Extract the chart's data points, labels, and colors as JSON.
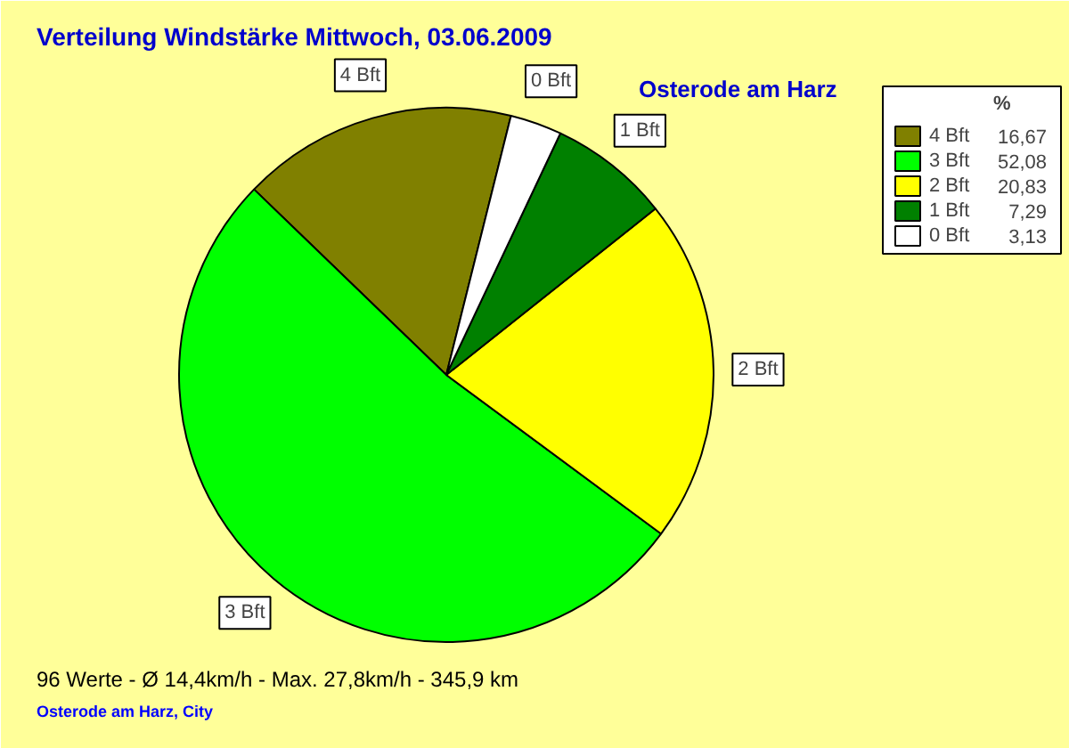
{
  "chart_data": {
    "type": "pie",
    "title": "Verteilung Windstärke  Mittwoch, 03.06.2009",
    "subtitle": "Osterode am Harz",
    "legend_title": "%",
    "categories": [
      "4 Bft",
      "3 Bft",
      "2 Bft",
      "1 Bft",
      "0 Bft"
    ],
    "values": [
      16.67,
      52.08,
      20.83,
      7.29,
      3.13
    ],
    "value_labels": [
      "16,67",
      "52,08",
      "20,83",
      "7,29",
      "3,13"
    ],
    "colors": [
      "#808000",
      "#00ff00",
      "#ffff00",
      "#008000",
      "#ffffff"
    ],
    "legend": "top right",
    "annotations": [
      "96 Werte   -   Ø 14,4km/h  -  Max. 27,8km/h   -   345,9 km",
      "Osterode am Harz, City"
    ]
  }
}
